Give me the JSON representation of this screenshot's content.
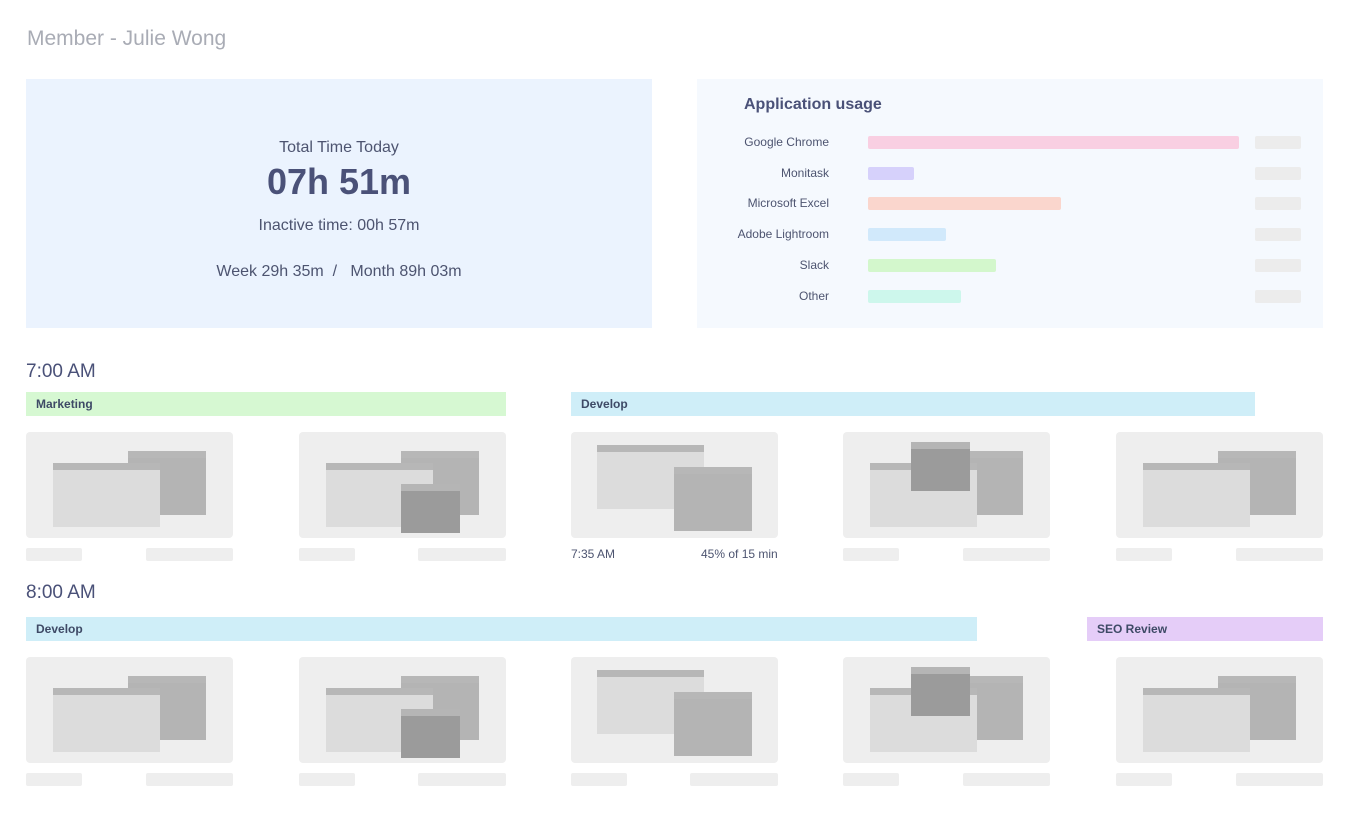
{
  "page": {
    "title": "Member - Julie Wong"
  },
  "summary": {
    "total_label": "Total Time Today",
    "total_value": "07h 51m",
    "inactive_label": "Inactive time: 00h 57m",
    "week_month": "Week 29h 35m  /   Month 89h 03m"
  },
  "usage": {
    "title": "Application usage",
    "apps": [
      {
        "name": "Google Chrome",
        "share": 1.0,
        "color": "#f9cfe2"
      },
      {
        "name": "Monitask",
        "share": 0.125,
        "color": "#d6d1fb"
      },
      {
        "name": "Microsoft Excel",
        "share": 0.52,
        "color": "#fad6cd"
      },
      {
        "name": "Adobe Lightroom",
        "share": 0.21,
        "color": "#d1e9fb"
      },
      {
        "name": "Slack",
        "share": 0.345,
        "color": "#d3f7cc"
      },
      {
        "name": "Other",
        "share": 0.25,
        "color": "#cdf7ec"
      }
    ]
  },
  "timeline": {
    "hour_7": "7:00 AM",
    "hour_8": "8:00 AM",
    "tasks_7": [
      {
        "label": "Marketing",
        "color": "#d6f8d2"
      },
      {
        "label": "Develop",
        "color": "#cfeef8"
      }
    ],
    "tasks_8": [
      {
        "label": "Develop",
        "color": "#cfeef8"
      },
      {
        "label": "SEO Review",
        "color": "#e5cdf8"
      }
    ],
    "screenshot_time": "7:35 AM",
    "screenshot_activity": "45% of 15 min"
  }
}
